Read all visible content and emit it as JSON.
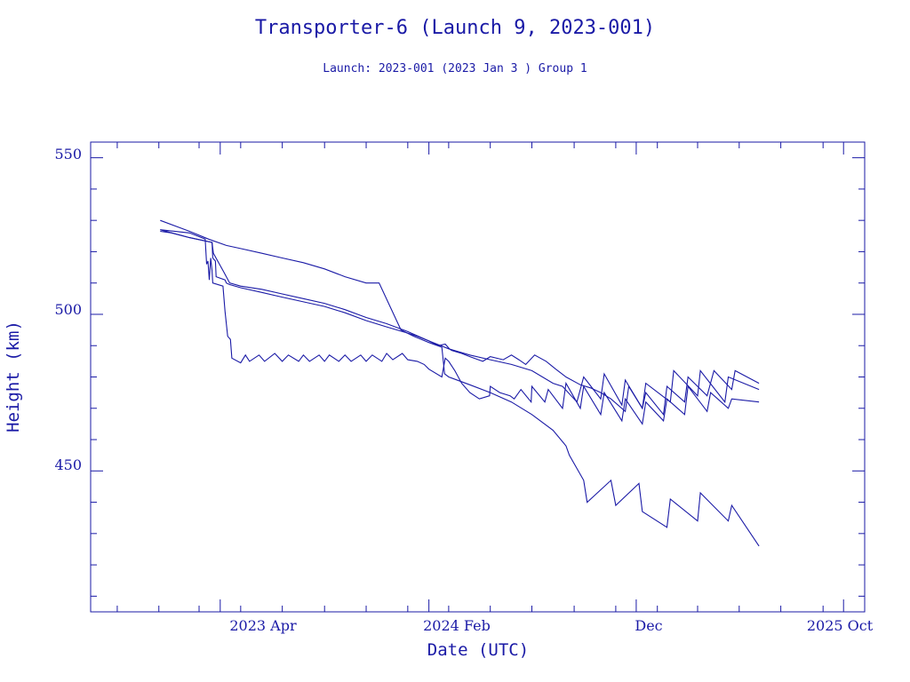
{
  "chart_data": {
    "type": "line",
    "title": "Transporter-6 (Launch 9, 2023-001)",
    "subtitle": "Launch: 2023-001  (2023 Jan  3 )  Group 1",
    "xlabel": "Date (UTC)",
    "ylabel": "Height (km)",
    "x_tick_labels": [
      "2023 Apr",
      "2024 Feb",
      "Dec",
      "2025 Oct"
    ],
    "y_tick_labels": [
      "550",
      "500",
      "450"
    ],
    "xlim": [
      "2022-09-23",
      "2025-11-01"
    ],
    "ylim": [
      405,
      555
    ],
    "grid": false,
    "color": "#1a1aa6",
    "series": [
      {
        "x": [
          "2023-01-03",
          "2023-01-20",
          "2023-02-15",
          "2023-03-20",
          "2023-03-21",
          "2023-03-25",
          "2023-03-26",
          "2023-04-08",
          "2023-04-10",
          "2023-04-15",
          "2023-05-01",
          "2023-06-01",
          "2023-07-01",
          "2023-08-01",
          "2023-09-01",
          "2023-10-01",
          "2023-11-01",
          "2023-12-01",
          "2024-01-01",
          "2024-01-15",
          "2024-02-01",
          "2024-02-15",
          "2024-02-25",
          "2024-03-02",
          "2024-03-05",
          "2024-03-20",
          "2024-04-01",
          "2024-04-20",
          "2024-05-01",
          "2024-05-20",
          "2024-06-01",
          "2024-06-12",
          "2024-06-22",
          "2024-07-05",
          "2024-07-22",
          "2024-08-05",
          "2024-08-20",
          "2024-09-10",
          "2024-09-25",
          "2024-10-10",
          "2024-10-25",
          "2024-11-15",
          "2024-11-20",
          "2024-12-10",
          "2024-12-15",
          "2025-01-10",
          "2025-01-15",
          "2025-02-10",
          "2025-02-15",
          "2025-03-15",
          "2025-03-25",
          "2025-04-20",
          "2025-04-25",
          "2025-05-30"
        ],
        "y": [
          526.5,
          526,
          524.5,
          523,
          518,
          517,
          512,
          511,
          510,
          509.5,
          508.5,
          507,
          505.5,
          504,
          502.5,
          500.5,
          498,
          496,
          494,
          493,
          491.5,
          490,
          490.5,
          489,
          488.5,
          487.5,
          486.5,
          485,
          486.5,
          485.5,
          487,
          485.5,
          484,
          487,
          485,
          482.5,
          480,
          477.5,
          476.5,
          475,
          473,
          469,
          477,
          470,
          475,
          468,
          477,
          472,
          480,
          474,
          482,
          476,
          482,
          478
        ]
      },
      {
        "x": [
          "2023-01-03",
          "2023-01-20",
          "2023-02-15",
          "2023-03-20",
          "2023-03-22",
          "2023-04-05",
          "2023-04-15",
          "2023-05-01",
          "2023-06-01",
          "2023-07-01",
          "2023-08-01",
          "2023-09-01",
          "2023-10-01",
          "2023-11-01",
          "2023-12-01",
          "2024-01-01",
          "2024-02-01",
          "2024-03-01",
          "2024-04-01",
          "2024-05-01",
          "2024-06-01",
          "2024-07-01",
          "2024-08-01",
          "2024-08-15",
          "2024-09-05",
          "2024-09-15",
          "2024-10-10",
          "2024-10-15",
          "2024-11-10",
          "2024-11-15",
          "2024-12-10",
          "2024-12-15",
          "2025-01-20",
          "2025-01-25",
          "2025-03-01",
          "2025-03-05",
          "2025-04-10",
          "2025-04-15",
          "2025-05-30"
        ],
        "y": [
          527,
          526,
          524.5,
          523,
          519.5,
          514,
          510,
          509,
          508,
          506.5,
          505,
          503.5,
          501.5,
          499,
          497,
          494.5,
          491.5,
          489,
          487,
          485.5,
          484,
          482,
          478,
          477,
          472,
          480,
          473,
          481,
          471,
          479,
          470,
          478,
          472,
          482,
          474,
          482,
          472,
          480,
          476
        ]
      },
      {
        "x": [
          "2023-01-03",
          "2023-02-15",
          "2023-03-15",
          "2023-04-10",
          "2023-05-01",
          "2023-06-01",
          "2023-07-01",
          "2023-08-01",
          "2023-09-01",
          "2023-10-01",
          "2023-11-01",
          "2023-11-20",
          "2023-12-20",
          "2023-12-22",
          "2024-01-05",
          "2024-01-10",
          "2024-02-01",
          "2024-02-20",
          "2024-02-24",
          "2024-03-01",
          "2024-04-01",
          "2024-05-01",
          "2024-06-01",
          "2024-07-01",
          "2024-08-01",
          "2024-08-20",
          "2024-08-25",
          "2024-09-15",
          "2024-09-20",
          "2024-10-25",
          "2024-11-01",
          "2024-12-05",
          "2024-12-10",
          "2025-01-15",
          "2025-01-20",
          "2025-03-01",
          "2025-03-05",
          "2025-04-15",
          "2025-04-20",
          "2025-05-30"
        ],
        "y": [
          530,
          526.5,
          524,
          522,
          521,
          519.5,
          518,
          516.5,
          514.5,
          512,
          510,
          510,
          496,
          495,
          493.5,
          493,
          491,
          489.5,
          481,
          480,
          477.5,
          475,
          472,
          468,
          463,
          458,
          455,
          447,
          440,
          447,
          439,
          446,
          437,
          432,
          441,
          434,
          443,
          434,
          439,
          426
        ]
      },
      {
        "x": [
          "2023-01-03",
          "2023-02-15",
          "2023-03-10",
          "2023-03-12",
          "2023-03-14",
          "2023-03-16",
          "2023-03-18",
          "2023-03-20",
          "2023-03-21",
          "2023-04-05",
          "2023-04-08",
          "2023-04-12",
          "2023-04-16",
          "2023-04-18",
          "2023-05-01",
          "2023-05-08",
          "2023-05-14",
          "2023-05-28",
          "2023-06-05",
          "2023-06-20",
          "2023-07-01",
          "2023-07-10",
          "2023-07-25",
          "2023-08-01",
          "2023-08-10",
          "2023-08-24",
          "2023-09-01",
          "2023-09-08",
          "2023-09-22",
          "2023-10-01",
          "2023-10-10",
          "2023-10-24",
          "2023-11-01",
          "2023-11-10",
          "2023-11-24",
          "2023-12-01",
          "2023-12-10",
          "2023-12-24",
          "2024-01-01",
          "2024-01-15",
          "2024-01-25",
          "2024-02-01",
          "2024-02-20",
          "2024-02-25",
          "2024-03-01",
          "2024-03-10",
          "2024-03-20",
          "2024-04-01",
          "2024-04-15",
          "2024-04-30",
          "2024-05-01",
          "2024-05-15",
          "2024-05-30",
          "2024-06-05",
          "2024-06-15",
          "2024-06-30",
          "2024-07-01",
          "2024-07-20",
          "2024-07-25",
          "2024-08-15",
          "2024-08-20",
          "2024-09-10",
          "2024-09-15",
          "2024-10-10",
          "2024-10-15",
          "2024-11-10",
          "2024-11-15",
          "2024-12-10",
          "2024-12-15",
          "2025-01-10",
          "2025-01-15",
          "2025-02-10",
          "2025-02-15",
          "2025-03-15",
          "2025-03-20",
          "2025-04-15",
          "2025-04-20",
          "2025-05-30"
        ],
        "y": [
          527,
          526,
          524,
          516,
          517,
          511,
          518,
          514,
          510,
          509,
          501,
          493,
          492,
          486,
          484.5,
          487,
          485,
          487,
          485,
          487.5,
          485,
          487,
          485,
          487,
          485,
          487,
          485,
          487,
          485,
          487,
          485,
          487,
          485,
          487,
          485,
          487.5,
          485.5,
          487.5,
          485.5,
          485,
          484,
          482.5,
          480,
          486,
          485,
          482,
          478,
          475,
          473,
          474,
          477,
          475,
          474,
          473,
          476,
          472,
          477,
          472,
          476,
          470,
          478,
          470,
          477,
          468,
          475,
          466,
          473,
          465,
          472,
          466,
          473,
          468,
          477,
          469,
          475,
          470,
          473,
          472
        ]
      }
    ]
  }
}
